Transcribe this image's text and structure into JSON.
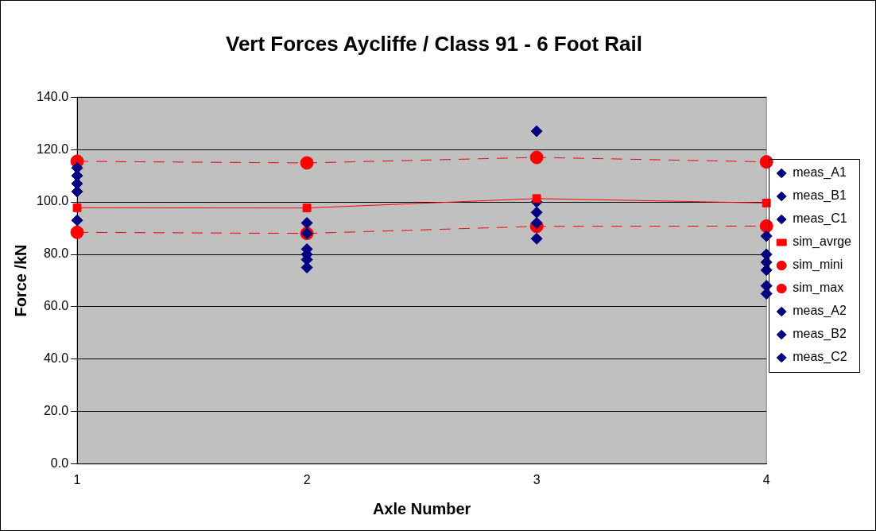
{
  "chart_data": {
    "type": "scatter",
    "title": "Vert Forces Aycliffe / Class 91 - 6 Foot Rail",
    "xlabel": "Axle Number",
    "ylabel": "Force /kN",
    "x": [
      1,
      2,
      3,
      4
    ],
    "xlim": [
      1,
      4
    ],
    "xticks": [
      1,
      2,
      3,
      4
    ],
    "ylim": [
      0,
      140
    ],
    "yticks": [
      {
        "value": 0,
        "label": "0.0"
      },
      {
        "value": 20,
        "label": "20.0"
      },
      {
        "value": 40,
        "label": "40.0"
      },
      {
        "value": 60,
        "label": "60.0"
      },
      {
        "value": 80,
        "label": "80.0"
      },
      {
        "value": 100,
        "label": "100.0"
      },
      {
        "value": 120,
        "label": "120.0"
      },
      {
        "value": 140,
        "label": "140.0"
      }
    ],
    "grid": "y",
    "legend": "right",
    "series": [
      {
        "name": "meas_A1",
        "marker": "diamond",
        "color": "#000080",
        "values": [
          113,
          92,
          127,
          87
        ]
      },
      {
        "name": "meas_B1",
        "marker": "diamond",
        "color": "#000080",
        "values": [
          110,
          88,
          100,
          80
        ]
      },
      {
        "name": "meas_C1",
        "marker": "diamond",
        "color": "#000080",
        "values": [
          107,
          82,
          null,
          77
        ]
      },
      {
        "name": "sim_avrge",
        "type": "line",
        "marker": "square",
        "line_style": "solid",
        "color": "#ff0000",
        "values": [
          97.8,
          97.7,
          101.3,
          99.6
        ]
      },
      {
        "name": "sim_mini",
        "type": "line",
        "marker": "circle",
        "line_style": "dashed",
        "color": "#ff0000",
        "values": [
          88.4,
          88,
          90.7,
          90.8
        ]
      },
      {
        "name": "sim_max",
        "type": "line",
        "marker": "circle",
        "line_style": "dashed",
        "color": "#ff0000",
        "values": [
          115.5,
          114.9,
          117,
          115.3
        ]
      },
      {
        "name": "meas_A2",
        "marker": "diamond",
        "color": "#000080",
        "values": [
          104,
          80,
          96,
          74
        ]
      },
      {
        "name": "meas_B2",
        "marker": "diamond",
        "color": "#000080",
        "values": [
          null,
          78,
          92,
          68
        ]
      },
      {
        "name": "meas_C2",
        "marker": "diamond",
        "color": "#000080",
        "values": [
          93,
          75,
          86,
          65
        ]
      }
    ]
  }
}
